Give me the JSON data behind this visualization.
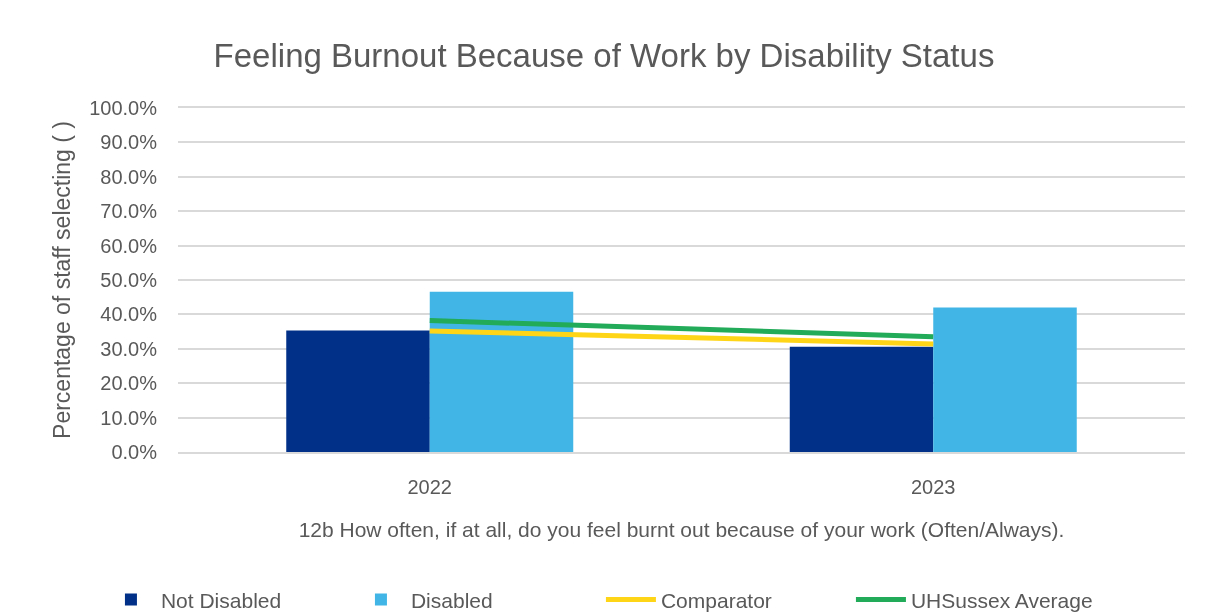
{
  "chart_data": {
    "type": "bar",
    "title": "Feeling Burnout Because of Work by Disability Status",
    "xlabel": "12b How often, if at all, do you feel burnt out because of your work (Often/Always).",
    "ylabel": "Percentage of staff selecting ( )",
    "categories": [
      "2022",
      "2023"
    ],
    "series": [
      {
        "name": "Not Disabled",
        "color": "#003087",
        "values": [
          35.3,
          30.6
        ]
      },
      {
        "name": "Disabled",
        "color": "#41b6e6",
        "values": [
          46.6,
          42.0
        ]
      },
      {
        "name": "Comparator",
        "type": "line",
        "color": "#ffd518",
        "values": [
          35.2,
          31.4
        ]
      },
      {
        "name": "UHSussex Average",
        "type": "line",
        "color": "#22ab58",
        "values": [
          38.2,
          33.5
        ]
      }
    ],
    "ylim": [
      0,
      100
    ],
    "yticks": [
      {
        "value": 0,
        "label": "0.0%"
      },
      {
        "value": 10,
        "label": "10.0%"
      },
      {
        "value": 20,
        "label": "20.0%"
      },
      {
        "value": 30,
        "label": "30.0%"
      },
      {
        "value": 40,
        "label": "40.0%"
      },
      {
        "value": 50,
        "label": "50.0%"
      },
      {
        "value": 60,
        "label": "60.0%"
      },
      {
        "value": 70,
        "label": "70.0%"
      },
      {
        "value": 80,
        "label": "80.0%"
      },
      {
        "value": 90,
        "label": "90.0%"
      },
      {
        "value": 100,
        "label": "100.0%"
      }
    ],
    "grid": "y",
    "legend": "bottom",
    "marker": "none"
  }
}
